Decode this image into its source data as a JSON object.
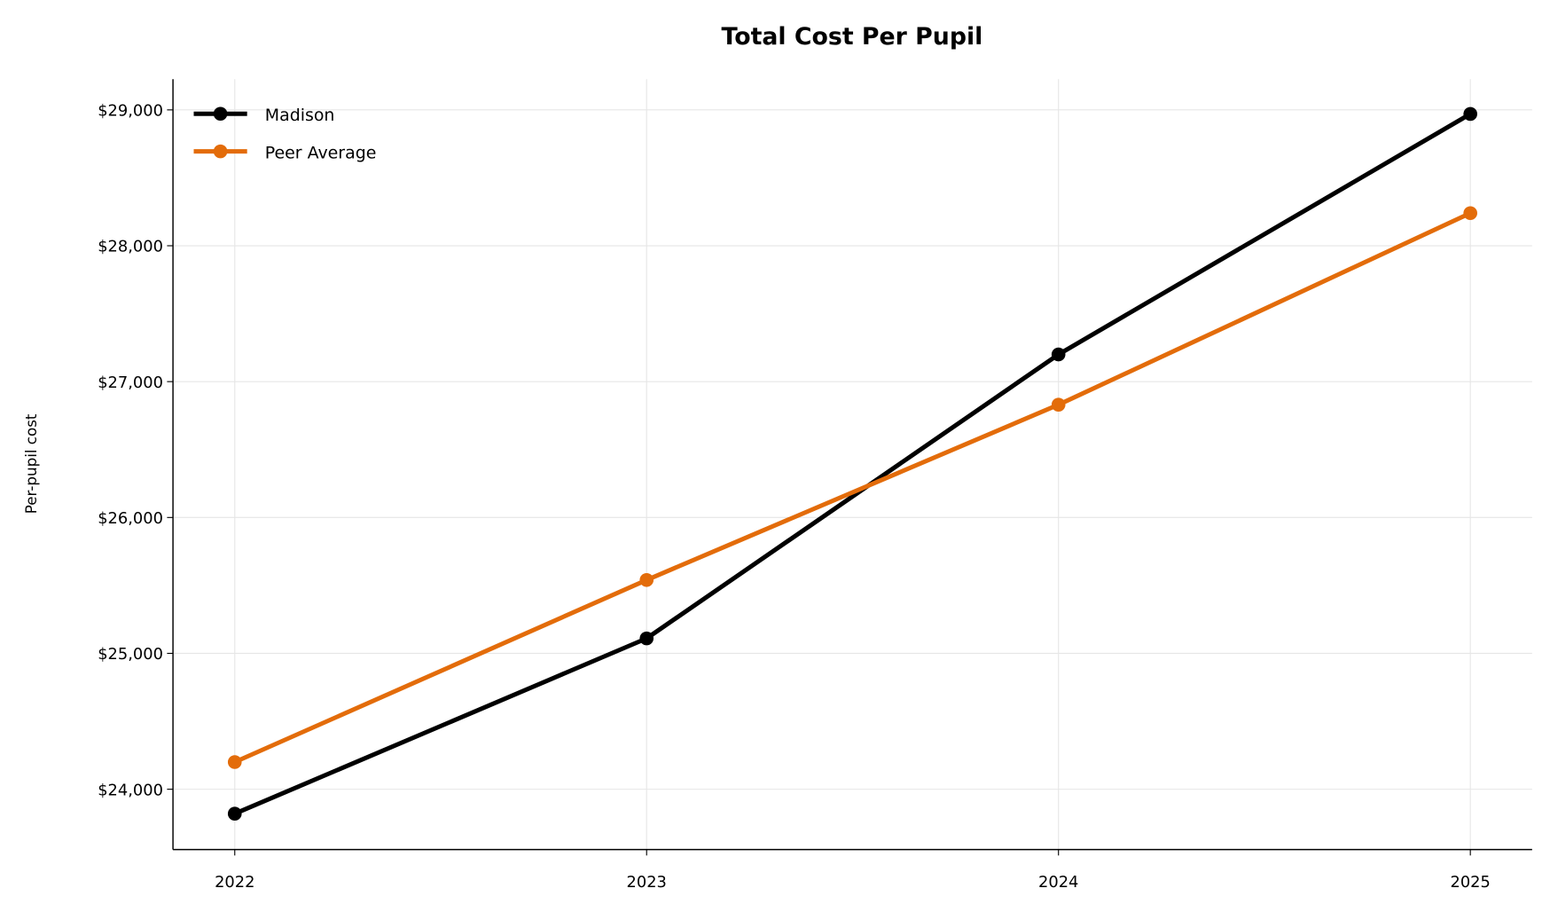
{
  "chart_data": {
    "type": "line",
    "title": "Total Cost Per Pupil",
    "xlabel": "",
    "ylabel": "Per-pupil cost",
    "x": [
      2022,
      2023,
      2024,
      2025
    ],
    "x_tick_labels": [
      "2022",
      "2023",
      "2024",
      "2025"
    ],
    "y_ticks": [
      24000,
      25000,
      26000,
      27000,
      28000,
      29000
    ],
    "y_tick_labels": [
      "$24,000",
      "$25,000",
      "$26,000",
      "$27,000",
      "$28,000",
      "$29,000"
    ],
    "xlim": [
      2021.85,
      2025.15
    ],
    "ylim": [
      23556,
      29226
    ],
    "grid": true,
    "legend_position": "top-left",
    "series": [
      {
        "name": "Madison",
        "color": "#000000",
        "values": [
          23820,
          25110,
          27200,
          28970
        ]
      },
      {
        "name": "Peer Average",
        "color": "#e36c0a",
        "values": [
          24200,
          25540,
          26830,
          28240
        ]
      }
    ]
  }
}
